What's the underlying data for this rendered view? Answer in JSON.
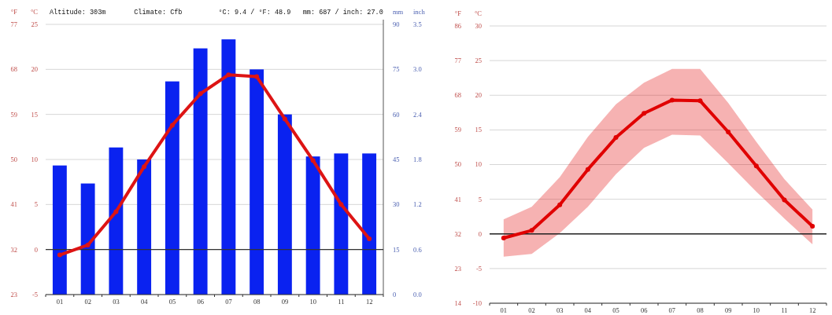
{
  "chart_data": [
    {
      "type": "bar",
      "categories": [
        "01",
        "02",
        "03",
        "04",
        "05",
        "06",
        "07",
        "08",
        "09",
        "10",
        "11",
        "12"
      ],
      "ylabel": "°C",
      "y2label": "mm",
      "y3label": "°F",
      "ylim": [
        -5,
        25
      ],
      "yticks": [
        -5,
        0,
        5,
        10,
        15,
        20,
        25
      ],
      "y2lim": [
        0,
        90
      ],
      "y2ticks": [
        0,
        15,
        30,
        45,
        60,
        75,
        90
      ],
      "y3lim": [
        23,
        77
      ],
      "y3ticks": [
        23,
        32,
        41,
        50,
        59,
        68,
        77
      ],
      "series": [
        {
          "axis": "y2",
          "color": "#0a22f0",
          "values": [
            43,
            37,
            49,
            45,
            71,
            82,
            85,
            75,
            60,
            46,
            47,
            47
          ]
        },
        {
          "type": "line",
          "axis": "y",
          "color": "#dd1414",
          "values": [
            -0.6,
            0.5,
            4.2,
            9.2,
            13.8,
            17.3,
            19.4,
            19.2,
            14.5,
            9.9,
            5.0,
            1.2
          ]
        }
      ],
      "ref_lines": [
        {
          "axis": "y",
          "value": 0,
          "color": "#333333"
        }
      ],
      "annotations": [
        "Altitude: 303m",
        "Climate: Cfb",
        "°C: 9.4 / °F: 48.9",
        "mm: 687 / inch: 27.0",
        "inch",
        "0.0",
        "0.6",
        "1.2",
        "1.8",
        "2.4",
        "3.0",
        "3.5"
      ],
      "grid": "y",
      "marker": "circle",
      "line_style": "solid"
    },
    {
      "type": "line",
      "categories": [
        "01",
        "02",
        "03",
        "04",
        "05",
        "06",
        "07",
        "08",
        "09",
        "10",
        "11",
        "12"
      ],
      "ylabel": "°C",
      "y3label": "°F",
      "ylim": [
        -10,
        30
      ],
      "yticks": [
        -10,
        -5,
        0,
        5,
        10,
        15,
        20,
        25,
        30
      ],
      "y3lim": [
        14,
        86
      ],
      "y3ticks": [
        14,
        23,
        32,
        41,
        50,
        59,
        68,
        77,
        86
      ],
      "series": [
        {
          "axis": "y",
          "color": "#e00000",
          "values": [
            -0.6,
            0.5,
            4.2,
            9.3,
            13.9,
            17.4,
            19.3,
            19.2,
            14.7,
            9.8,
            4.9,
            1.1
          ],
          "lower": [
            -3.3,
            -2.9,
            0.1,
            3.9,
            8.6,
            12.4,
            14.3,
            14.2,
            10.2,
            6.1,
            2.2,
            -1.5
          ],
          "upper": [
            2.1,
            3.9,
            8.2,
            14.0,
            18.7,
            21.8,
            23.8,
            23.8,
            18.9,
            13.3,
            7.9,
            3.5
          ]
        }
      ],
      "ref_lines": [
        {
          "axis": "y",
          "value": 0,
          "color": "#222222"
        }
      ],
      "grid": "y",
      "marker": "circle",
      "line_style": "solid"
    }
  ]
}
